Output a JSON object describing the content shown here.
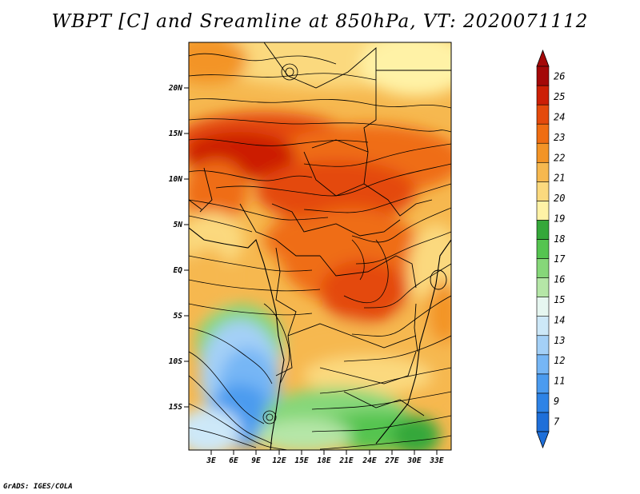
{
  "title": "WBPT [C] and Sreamline at 850hPa, VT: 2020071112",
  "credit": "GrADS: IGES/COLA",
  "map": {
    "region": "Central and Southern Africa",
    "lat_ticks": [
      "20N",
      "15N",
      "10N",
      "5N",
      "EQ",
      "5S",
      "10S",
      "15S"
    ],
    "lon_ticks": [
      "3E",
      "6E",
      "9E",
      "12E",
      "15E",
      "18E",
      "21E",
      "24E",
      "27E",
      "30E",
      "33E"
    ]
  },
  "colorbar": {
    "labels": [
      "7",
      "9",
      "11",
      "12",
      "13",
      "14",
      "15",
      "16",
      "17",
      "18",
      "19",
      "20",
      "21",
      "22",
      "23",
      "24",
      "25",
      "26"
    ],
    "colors": [
      "#1e6fd9",
      "#2d83e6",
      "#4b9bef",
      "#76b6f5",
      "#a4d0f7",
      "#cde8f8",
      "#e6f6f0",
      "#b5e6a7",
      "#86d779",
      "#55c450",
      "#35a83a",
      "#fff2a6",
      "#fbd97e",
      "#f6b84f",
      "#f39426",
      "#ef6d12",
      "#e44a0c",
      "#cc1f06",
      "#a40808"
    ],
    "units": "C"
  }
}
